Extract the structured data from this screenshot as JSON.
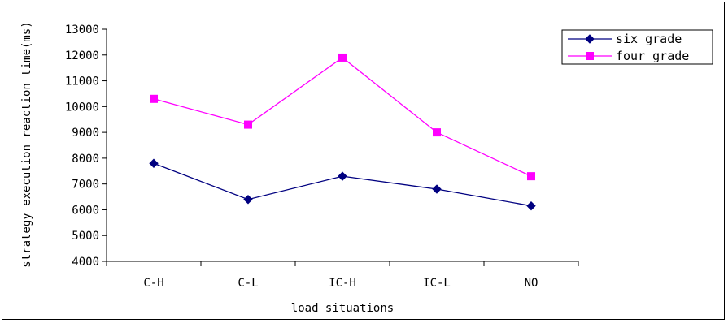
{
  "chart_data": {
    "type": "line",
    "categories": [
      "C-H",
      "C-L",
      "IC-H",
      "IC-L",
      "NO"
    ],
    "series": [
      {
        "name": "six grade",
        "values": [
          7800,
          6400,
          7300,
          6800,
          6150
        ],
        "color": "#000080",
        "marker": "diamond"
      },
      {
        "name": "four grade",
        "values": [
          10300,
          9300,
          11900,
          9000,
          7300
        ],
        "color": "#ff00ff",
        "marker": "square"
      }
    ],
    "title": "",
    "xlabel": "load situations",
    "ylabel": "strategy execution reaction time(ms)",
    "ylim": [
      4000,
      13000
    ],
    "yticks": [
      "4000",
      "5000",
      "6000",
      "7000",
      "8000",
      "9000",
      "10000",
      "11000",
      "12000",
      "13000"
    ],
    "grid": false,
    "legend_position": "top-right"
  }
}
